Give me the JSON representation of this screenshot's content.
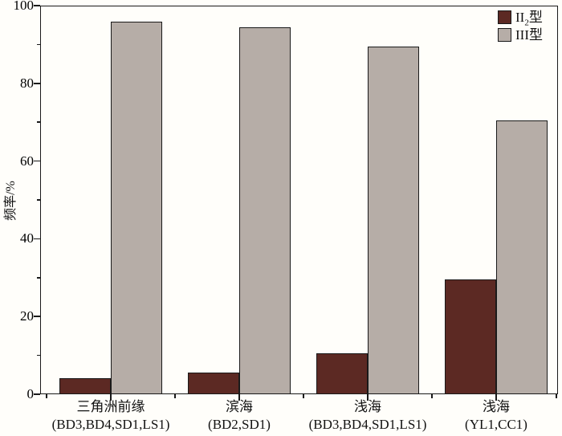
{
  "chart_data": {
    "type": "bar",
    "title": "",
    "ylabel": "频率/%",
    "xlabel": "",
    "ylim": [
      0,
      100
    ],
    "yticks": [
      "0",
      "20",
      "40",
      "60",
      "80",
      "100"
    ],
    "ytick_values": [
      0,
      20,
      40,
      60,
      80,
      100
    ],
    "yminor_values": [
      10,
      30,
      50,
      70,
      90
    ],
    "grid": false,
    "legend_position": "top-right-inside",
    "background_color": "#fffefa",
    "axis_color": "#1a1a1a",
    "categories": [
      {
        "name": "三角洲前缘",
        "codes": "(BD3,BD4,SD1,LS1)"
      },
      {
        "name": "滨海",
        "codes": "(BD2,SD1)"
      },
      {
        "name": "浅海",
        "codes": "(BD3,BD4,SD1,LS1)"
      },
      {
        "name": "浅海",
        "codes": "(YL1,CC1)"
      }
    ],
    "series": [
      {
        "name": "II2型",
        "label_main": "II",
        "label_sub": "2",
        "label_suffix": "型",
        "color": "#5c2923",
        "values": [
          4.1,
          5.6,
          10.5,
          29.6
        ]
      },
      {
        "name": "III型",
        "label_main": "III",
        "label_sub": "",
        "label_suffix": "型",
        "color": "#b6ada7",
        "values": [
          95.9,
          94.4,
          89.5,
          70.4
        ]
      }
    ]
  }
}
